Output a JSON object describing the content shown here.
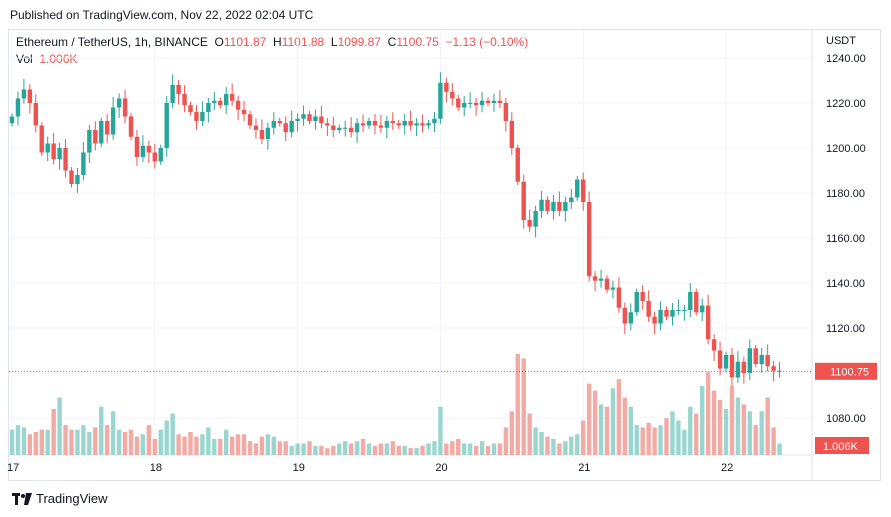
{
  "header": {
    "published": "Published on TradingView.com, Nov 22, 2022 02:04 UTC"
  },
  "legend": {
    "symbol": "Ethereum / TetherUS, 1h, BINANCE",
    "o_label": "O",
    "o": "1101.87",
    "h_label": "H",
    "h": "1101.88",
    "l_label": "L",
    "l": "1099.87",
    "c_label": "C",
    "c": "1100.75",
    "change": "−1.13 (−0.10%)",
    "vol_label": "Vol",
    "vol": "1.006K"
  },
  "axis": {
    "unit": "USDT",
    "last_price_label": "1100.75",
    "last_vol_label": "1.006K"
  },
  "footer": {
    "brand": "TradingView"
  },
  "colors": {
    "up": "#26a69a",
    "down": "#ef5350",
    "up_vol": "#9ad6cf",
    "down_vol": "#f2aaa5",
    "grid": "#f0f3fa"
  },
  "chart_data": {
    "type": "candlestick",
    "ylabel": "USDT",
    "ylim": [
      1068,
      1243
    ],
    "yticks": [
      1080,
      1100,
      1120,
      1140,
      1160,
      1180,
      1200,
      1220,
      1240
    ],
    "x_tick_labels": [
      {
        "label": "17",
        "index": 0
      },
      {
        "label": "18",
        "index": 24
      },
      {
        "label": "19",
        "index": 48
      },
      {
        "label": "20",
        "index": 72
      },
      {
        "label": "21",
        "index": 96
      },
      {
        "label": "22",
        "index": 120
      }
    ],
    "last_price": 1100.75,
    "close": [
      1214,
      1222,
      1226,
      1220,
      1210,
      1198,
      1202,
      1195,
      1200,
      1190,
      1184,
      1188,
      1198,
      1208,
      1202,
      1212,
      1206,
      1218,
      1222,
      1214,
      1205,
      1196,
      1201,
      1198,
      1194,
      1200,
      1220,
      1228,
      1224,
      1219,
      1216,
      1212,
      1216,
      1220,
      1221,
      1219,
      1224,
      1221,
      1217,
      1215,
      1210,
      1208,
      1204,
      1209,
      1212,
      1211,
      1207,
      1212,
      1213,
      1215,
      1212,
      1214,
      1211,
      1210,
      1208,
      1209,
      1209,
      1207,
      1211,
      1210,
      1212,
      1210,
      1209,
      1212,
      1211,
      1210,
      1212,
      1210,
      1211,
      1210,
      1211,
      1213,
      1229,
      1225,
      1222,
      1218,
      1220,
      1220,
      1219,
      1221,
      1220,
      1221,
      1220,
      1212,
      1200,
      1185,
      1168,
      1165,
      1172,
      1177,
      1172,
      1176,
      1172,
      1176,
      1178,
      1186,
      1176,
      1143,
      1141,
      1142,
      1137,
      1138,
      1129,
      1122,
      1127,
      1136,
      1132,
      1125,
      1122,
      1128,
      1125,
      1128,
      1128,
      1128,
      1136,
      1127,
      1130,
      1115,
      1110,
      1102,
      1108,
      1098,
      1105,
      1100,
      1111,
      1104,
      1108,
      1103,
      1101,
      1101
    ],
    "volume": [
      0.11,
      0.13,
      0.12,
      0.09,
      0.1,
      0.11,
      0.11,
      0.2,
      0.25,
      0.13,
      0.11,
      0.11,
      0.13,
      0.1,
      0.12,
      0.21,
      0.13,
      0.19,
      0.11,
      0.1,
      0.11,
      0.08,
      0.09,
      0.13,
      0.07,
      0.11,
      0.15,
      0.18,
      0.09,
      0.08,
      0.1,
      0.08,
      0.09,
      0.12,
      0.07,
      0.07,
      0.11,
      0.08,
      0.09,
      0.09,
      0.06,
      0.05,
      0.08,
      0.09,
      0.08,
      0.06,
      0.06,
      0.04,
      0.05,
      0.05,
      0.06,
      0.04,
      0.04,
      0.03,
      0.04,
      0.05,
      0.06,
      0.05,
      0.06,
      0.07,
      0.05,
      0.04,
      0.05,
      0.05,
      0.06,
      0.04,
      0.04,
      0.03,
      0.03,
      0.04,
      0.05,
      0.06,
      0.21,
      0.05,
      0.06,
      0.07,
      0.05,
      0.05,
      0.04,
      0.06,
      0.04,
      0.05,
      0.05,
      0.12,
      0.19,
      0.44,
      0.42,
      0.18,
      0.12,
      0.1,
      0.08,
      0.07,
      0.05,
      0.06,
      0.08,
      0.09,
      0.15,
      0.31,
      0.28,
      0.22,
      0.21,
      0.29,
      0.33,
      0.25,
      0.21,
      0.13,
      0.12,
      0.14,
      0.12,
      0.13,
      0.16,
      0.19,
      0.15,
      0.11,
      0.21,
      0.18,
      0.3,
      0.36,
      0.28,
      0.24,
      0.2,
      0.3,
      0.25,
      0.22,
      0.19,
      0.13,
      0.19,
      0.25,
      0.12,
      0.05
    ]
  }
}
